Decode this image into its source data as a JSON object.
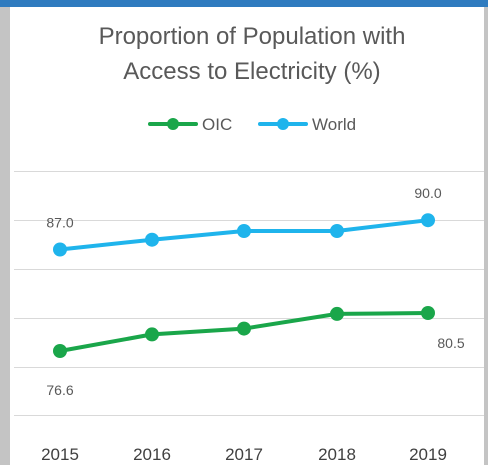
{
  "chart_data": {
    "type": "line",
    "title": "Proportion of Population with Access to Electricity  (%)",
    "title_lines": [
      "Proportion of Population with",
      "Access to Electricity  (%)"
    ],
    "categories": [
      "2015",
      "2016",
      "2017",
      "2018",
      "2019"
    ],
    "series": [
      {
        "name": "OIC",
        "color": "#1aa64a",
        "values": [
          76.6,
          78.3,
          78.9,
          80.4,
          80.5
        ],
        "data_labels": [
          {
            "index": 0,
            "text": "76.6"
          },
          {
            "index": 4,
            "text": "80.5"
          }
        ]
      },
      {
        "name": "World",
        "color": "#1fb4ec",
        "values": [
          87.0,
          88.0,
          88.9,
          88.9,
          90.0
        ],
        "data_labels": [
          {
            "index": 0,
            "text": "87.0"
          },
          {
            "index": 4,
            "text": "90.0"
          }
        ]
      }
    ],
    "ylim": [
      68,
      97.5
    ],
    "gridlines": [
      70,
      75,
      80,
      85,
      90,
      95
    ],
    "grid": true,
    "legend_position": "top"
  }
}
